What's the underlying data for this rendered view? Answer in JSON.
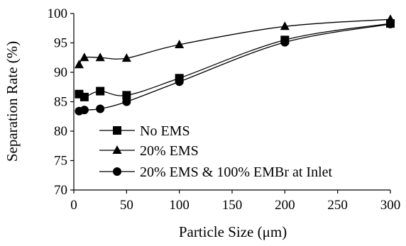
{
  "chart_data": {
    "type": "line",
    "title": "",
    "xlabel": "Particle Size (μm)",
    "ylabel": "Separation Rate (%)",
    "xlim": [
      0,
      300
    ],
    "ylim": [
      70,
      100
    ],
    "xticks": [
      0,
      50,
      100,
      150,
      200,
      250,
      300
    ],
    "yticks": [
      70,
      75,
      80,
      85,
      90,
      95,
      100
    ],
    "grid": false,
    "legend_position": "bottom-right",
    "series": [
      {
        "name": "No EMS",
        "marker": "square",
        "color": "#000000",
        "x": [
          5,
          10,
          25,
          50,
          100,
          200,
          300
        ],
        "y": [
          86.3,
          85.8,
          86.8,
          86.1,
          89.0,
          95.5,
          98.3
        ]
      },
      {
        "name": "20% EMS",
        "marker": "triangle",
        "color": "#000000",
        "x": [
          5,
          10,
          25,
          50,
          100,
          200,
          300
        ],
        "y": [
          91.3,
          92.5,
          92.5,
          92.4,
          94.7,
          97.8,
          99.0
        ]
      },
      {
        "name": "20% EMS & 100% EMBr at Inlet",
        "marker": "circle",
        "color": "#000000",
        "x": [
          5,
          10,
          25,
          50,
          100,
          200,
          300
        ],
        "y": [
          83.4,
          83.6,
          83.8,
          85.0,
          88.4,
          95.1,
          98.2
        ]
      }
    ]
  }
}
